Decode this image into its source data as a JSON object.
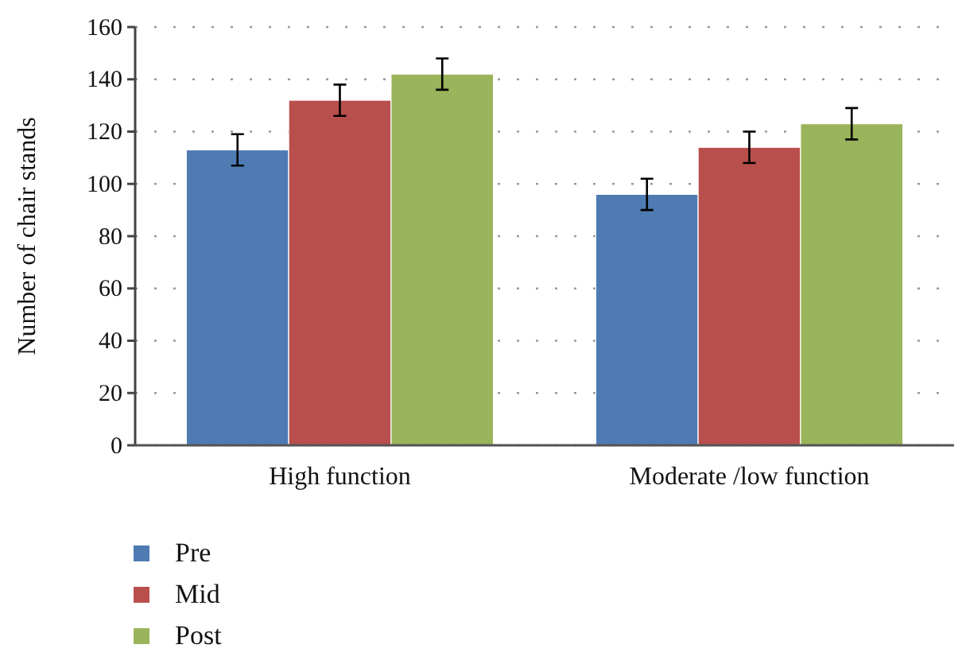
{
  "chart_data": {
    "type": "bar",
    "ylabel": "Number of chair stands",
    "categories": [
      "High function",
      "Moderate /low function"
    ],
    "series": [
      {
        "name": "Pre",
        "color": "#4f7bb3",
        "values": [
          113,
          96
        ],
        "errors": [
          6,
          6
        ]
      },
      {
        "name": "Mid",
        "color": "#b94f4c",
        "values": [
          132,
          114
        ],
        "errors": [
          6,
          6
        ]
      },
      {
        "name": "Post",
        "color": "#99b45a",
        "values": [
          142,
          123
        ],
        "errors": [
          6,
          6
        ]
      }
    ],
    "ylim": [
      0,
      160
    ],
    "yticks": [
      0,
      20,
      40,
      60,
      80,
      100,
      120,
      140,
      160
    ],
    "grid": "y",
    "legend": "bottom left"
  }
}
